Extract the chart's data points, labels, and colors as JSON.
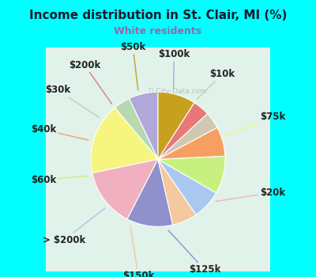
{
  "title": "Income distribution in St. Clair, MI (%)",
  "subtitle": "White residents",
  "title_color": "#1a1a2e",
  "subtitle_color": "#9966aa",
  "background_cyan": "#00FFFF",
  "background_chart": "#e0f2e9",
  "watermark": "City-Data.com",
  "labels": [
    "$100k",
    "$10k",
    "$75k",
    "$20k",
    "$125k",
    "$150k",
    "> $200k",
    "$60k",
    "$40k",
    "$30k",
    "$200k",
    "$50k"
  ],
  "values": [
    7,
    4,
    17,
    14,
    11,
    6,
    7,
    9,
    7,
    4,
    4,
    9
  ],
  "colors": [
    "#b0a8d8",
    "#b8d8b0",
    "#f5f580",
    "#f0b0c0",
    "#9090cc",
    "#f5c8a0",
    "#a8c8f0",
    "#c8f080",
    "#f5a060",
    "#d0c8b0",
    "#e87878",
    "#c8a020"
  ],
  "label_fontsize": 8.5,
  "startangle": 90,
  "label_color": "#222222"
}
